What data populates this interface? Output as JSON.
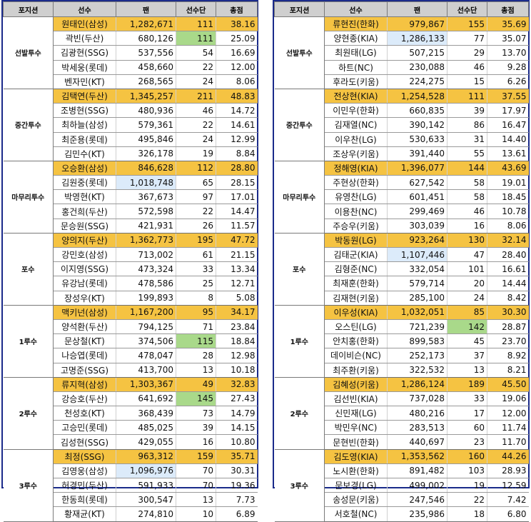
{
  "headers": [
    "포지션",
    "선수",
    "팬",
    "선수단",
    "총점"
  ],
  "left": [
    {
      "position": "선발투수",
      "rows": [
        {
          "name": "원태인(삼성)",
          "fan": "1,282,671",
          "team": "111",
          "total": "38.16",
          "hl": ""
        },
        {
          "name": "곽빈(두산)",
          "fan": "680,126",
          "team": "111",
          "total": "25.09",
          "hl": "team"
        },
        {
          "name": "김광현(SSG)",
          "fan": "537,556",
          "team": "54",
          "total": "16.69",
          "hl": ""
        },
        {
          "name": "박세웅(롯데)",
          "fan": "458,660",
          "team": "22",
          "total": "12.00",
          "hl": ""
        },
        {
          "name": "벤자민(KT)",
          "fan": "268,565",
          "team": "24",
          "total": "8.06",
          "hl": ""
        }
      ]
    },
    {
      "position": "중간투수",
      "rows": [
        {
          "name": "김택연(두산)",
          "fan": "1,345,257",
          "team": "211",
          "total": "48.83",
          "hl": ""
        },
        {
          "name": "조병현(SSG)",
          "fan": "480,936",
          "team": "46",
          "total": "14.72",
          "hl": ""
        },
        {
          "name": "최하늘(삼성)",
          "fan": "579,361",
          "team": "22",
          "total": "14.61",
          "hl": ""
        },
        {
          "name": "최준용(롯데)",
          "fan": "495,846",
          "team": "24",
          "total": "12.99",
          "hl": ""
        },
        {
          "name": "김민수(KT)",
          "fan": "326,178",
          "team": "19",
          "total": "8.84",
          "hl": ""
        }
      ]
    },
    {
      "position": "마무리투수",
      "rows": [
        {
          "name": "오승환(삼성)",
          "fan": "846,628",
          "team": "112",
          "total": "28.80",
          "hl": ""
        },
        {
          "name": "김원중(롯데)",
          "fan": "1,018,748",
          "team": "65",
          "total": "28.15",
          "hl": "fan"
        },
        {
          "name": "박영현(KT)",
          "fan": "367,673",
          "team": "97",
          "total": "17.01",
          "hl": ""
        },
        {
          "name": "홍건희(두산)",
          "fan": "572,598",
          "team": "22",
          "total": "14.47",
          "hl": ""
        },
        {
          "name": "문승원(SSG)",
          "fan": "421,931",
          "team": "26",
          "total": "11.57",
          "hl": ""
        }
      ]
    },
    {
      "position": "포수",
      "rows": [
        {
          "name": "양의지(두산)",
          "fan": "1,362,773",
          "team": "195",
          "total": "47.72",
          "hl": ""
        },
        {
          "name": "강민호(삼성)",
          "fan": "713,002",
          "team": "61",
          "total": "21.15",
          "hl": ""
        },
        {
          "name": "이지영(SSG)",
          "fan": "473,324",
          "team": "33",
          "total": "13.34",
          "hl": ""
        },
        {
          "name": "유강남(롯데)",
          "fan": "478,586",
          "team": "25",
          "total": "12.71",
          "hl": ""
        },
        {
          "name": "장성우(KT)",
          "fan": "199,893",
          "team": "8",
          "total": "5.08",
          "hl": ""
        }
      ]
    },
    {
      "position": "1루수",
      "rows": [
        {
          "name": "맥키넌(삼성)",
          "fan": "1,167,200",
          "team": "95",
          "total": "34.17",
          "hl": ""
        },
        {
          "name": "양석환(두산)",
          "fan": "794,125",
          "team": "71",
          "total": "23.84",
          "hl": ""
        },
        {
          "name": "문상철(KT)",
          "fan": "374,506",
          "team": "115",
          "total": "18.84",
          "hl": "team"
        },
        {
          "name": "나승엽(롯데)",
          "fan": "478,047",
          "team": "28",
          "total": "12.98",
          "hl": ""
        },
        {
          "name": "고명준(SSG)",
          "fan": "413,700",
          "team": "13",
          "total": "10.18",
          "hl": ""
        }
      ]
    },
    {
      "position": "2루수",
      "rows": [
        {
          "name": "류지혁(삼성)",
          "fan": "1,303,367",
          "team": "49",
          "total": "32.83",
          "hl": ""
        },
        {
          "name": "강승호(두산)",
          "fan": "641,692",
          "team": "145",
          "total": "27.43",
          "hl": "team"
        },
        {
          "name": "천성호(KT)",
          "fan": "368,439",
          "team": "73",
          "total": "14.79",
          "hl": ""
        },
        {
          "name": "고승민(롯데)",
          "fan": "485,025",
          "team": "39",
          "total": "14.15",
          "hl": ""
        },
        {
          "name": "김성현(SSG)",
          "fan": "429,055",
          "team": "16",
          "total": "10.80",
          "hl": ""
        }
      ]
    },
    {
      "position": "3루수",
      "rows": [
        {
          "name": "최정(SSG)",
          "fan": "963,312",
          "team": "159",
          "total": "35.71",
          "hl": ""
        },
        {
          "name": "김영웅(삼성)",
          "fan": "1,096,976",
          "team": "70",
          "total": "30.31",
          "hl": "fan"
        },
        {
          "name": "허경민(두산)",
          "fan": "591,933",
          "team": "70",
          "total": "19.36",
          "hl": ""
        },
        {
          "name": "한동희(롯데)",
          "fan": "300,547",
          "team": "13",
          "total": "7.73",
          "hl": ""
        },
        {
          "name": "황재균(KT)",
          "fan": "274,810",
          "team": "10",
          "total": "6.89",
          "hl": ""
        }
      ]
    }
  ],
  "right": [
    {
      "position": "선발투수",
      "rows": [
        {
          "name": "류현진(한화)",
          "fan": "979,867",
          "team": "155",
          "total": "35.69",
          "hl": ""
        },
        {
          "name": "양현종(KIA)",
          "fan": "1,286,133",
          "team": "77",
          "total": "35.07",
          "hl": "fan"
        },
        {
          "name": "최원태(LG)",
          "fan": "507,215",
          "team": "29",
          "total": "13.70",
          "hl": ""
        },
        {
          "name": "하트(NC)",
          "fan": "230,088",
          "team": "46",
          "total": "9.28",
          "hl": ""
        },
        {
          "name": "후라도(키움)",
          "fan": "224,275",
          "team": "15",
          "total": "6.26",
          "hl": ""
        }
      ]
    },
    {
      "position": "중간투수",
      "rows": [
        {
          "name": "전상현(KIA)",
          "fan": "1,254,528",
          "team": "111",
          "total": "37.55",
          "hl": ""
        },
        {
          "name": "이민우(한화)",
          "fan": "660,835",
          "team": "39",
          "total": "17.97",
          "hl": ""
        },
        {
          "name": "김재열(NC)",
          "fan": "390,142",
          "team": "86",
          "total": "16.47",
          "hl": ""
        },
        {
          "name": "이우찬(LG)",
          "fan": "530,633",
          "team": "31",
          "total": "14.40",
          "hl": ""
        },
        {
          "name": "조상우(키움)",
          "fan": "391,440",
          "team": "55",
          "total": "13.61",
          "hl": ""
        }
      ]
    },
    {
      "position": "마무리투수",
      "rows": [
        {
          "name": "정해영(KIA)",
          "fan": "1,396,077",
          "team": "144",
          "total": "43.69",
          "hl": ""
        },
        {
          "name": "주현상(한화)",
          "fan": "627,542",
          "team": "58",
          "total": "19.01",
          "hl": ""
        },
        {
          "name": "유영찬(LG)",
          "fan": "601,451",
          "team": "58",
          "total": "18.45",
          "hl": ""
        },
        {
          "name": "이용찬(NC)",
          "fan": "299,469",
          "team": "46",
          "total": "10.78",
          "hl": ""
        },
        {
          "name": "주승우(키움)",
          "fan": "303,039",
          "team": "16",
          "total": "8.06",
          "hl": ""
        }
      ]
    },
    {
      "position": "포수",
      "rows": [
        {
          "name": "박동원(LG)",
          "fan": "923,264",
          "team": "130",
          "total": "32.14",
          "hl": ""
        },
        {
          "name": "김태군(KIA)",
          "fan": "1,107,446",
          "team": "47",
          "total": "28.40",
          "hl": "fan"
        },
        {
          "name": "김형준(NC)",
          "fan": "332,054",
          "team": "101",
          "total": "16.61",
          "hl": ""
        },
        {
          "name": "최재훈(한화)",
          "fan": "579,714",
          "team": "20",
          "total": "14.44",
          "hl": ""
        },
        {
          "name": "김재현(키움)",
          "fan": "285,100",
          "team": "24",
          "total": "8.42",
          "hl": ""
        }
      ]
    },
    {
      "position": "1루수",
      "rows": [
        {
          "name": "이우성(KIA)",
          "fan": "1,032,051",
          "team": "85",
          "total": "30.30",
          "hl": ""
        },
        {
          "name": "오스틴(LG)",
          "fan": "721,239",
          "team": "142",
          "total": "28.87",
          "hl": "team"
        },
        {
          "name": "안치홍(한화)",
          "fan": "899,583",
          "team": "45",
          "total": "23.70",
          "hl": ""
        },
        {
          "name": "데이비슨(NC)",
          "fan": "252,173",
          "team": "37",
          "total": "8.92",
          "hl": ""
        },
        {
          "name": "최주환(키움)",
          "fan": "322,532",
          "team": "13",
          "total": "8.21",
          "hl": ""
        }
      ]
    },
    {
      "position": "2루수",
      "rows": [
        {
          "name": "김혜성(키움)",
          "fan": "1,286,124",
          "team": "189",
          "total": "45.50",
          "hl": ""
        },
        {
          "name": "김선빈(KIA)",
          "fan": "737,028",
          "team": "33",
          "total": "19.06",
          "hl": ""
        },
        {
          "name": "신민재(LG)",
          "fan": "480,216",
          "team": "17",
          "total": "12.00",
          "hl": ""
        },
        {
          "name": "박민우(NC)",
          "fan": "283,513",
          "team": "60",
          "total": "11.74",
          "hl": ""
        },
        {
          "name": "문현빈(한화)",
          "fan": "440,697",
          "team": "23",
          "total": "11.70",
          "hl": ""
        }
      ]
    },
    {
      "position": "3루수",
      "rows": [
        {
          "name": "김도영(KIA)",
          "fan": "1,353,562",
          "team": "160",
          "total": "44.26",
          "hl": ""
        },
        {
          "name": "노시환(한화)",
          "fan": "891,482",
          "team": "103",
          "total": "28.93",
          "hl": ""
        },
        {
          "name": "문보경(LG)",
          "fan": "499,002",
          "team": "19",
          "total": "12.59",
          "hl": ""
        },
        {
          "name": "송성문(키움)",
          "fan": "247,546",
          "team": "22",
          "total": "7.42",
          "hl": ""
        },
        {
          "name": "서호철(NC)",
          "fan": "235,986",
          "team": "18",
          "total": "6.80",
          "hl": ""
        }
      ]
    }
  ]
}
